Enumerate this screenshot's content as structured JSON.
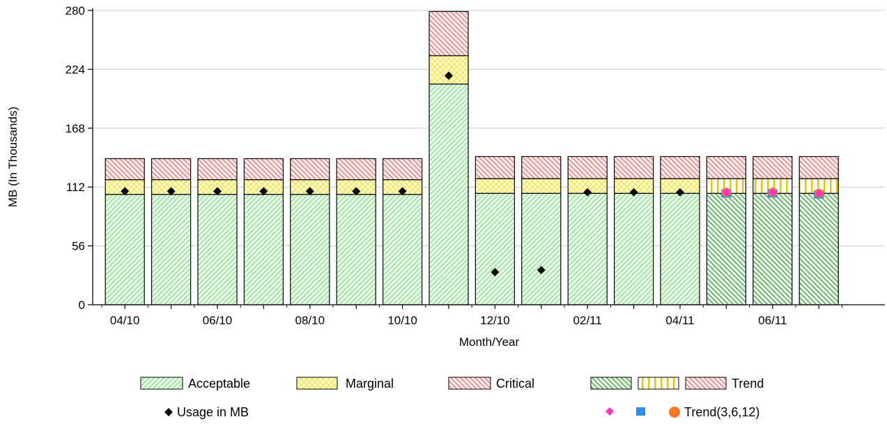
{
  "chart_data": {
    "type": "bar",
    "stacked": true,
    "xlabel": "Month/Year",
    "ylabel": "MB (In Thousands)",
    "ylim": [
      0,
      280
    ],
    "yticks": [
      "0",
      "56",
      "112",
      "168",
      "224",
      "280"
    ],
    "ytick_values": [
      0,
      56,
      112,
      168,
      224,
      280
    ],
    "grid": "horizontal",
    "categories": [
      "04/10",
      "05/10",
      "06/10",
      "07/10",
      "08/10",
      "09/10",
      "10/10",
      "11/10",
      "12/10",
      "01/11",
      "02/11",
      "03/11",
      "04/11",
      "05/11",
      "06/11",
      "07/11"
    ],
    "xtick_labels": [
      "04/10",
      "",
      "06/10",
      "",
      "08/10",
      "",
      "10/10",
      "",
      "12/10",
      "",
      "02/11",
      "",
      "04/11",
      "",
      "06/11",
      ""
    ],
    "is_trend": [
      false,
      false,
      false,
      false,
      false,
      false,
      false,
      false,
      false,
      false,
      false,
      false,
      false,
      true,
      true,
      true
    ],
    "series": [
      {
        "name": "Acceptable",
        "values": [
          105,
          105,
          105,
          105,
          105,
          105,
          105,
          210,
          106,
          106,
          106,
          106,
          106,
          106,
          106,
          106
        ]
      },
      {
        "name": "Marginal",
        "values": [
          14,
          14,
          14,
          14,
          14,
          14,
          14,
          27,
          14,
          14,
          14,
          14,
          14,
          14,
          14,
          14
        ]
      },
      {
        "name": "Critical",
        "values": [
          20,
          20,
          20,
          20,
          20,
          20,
          20,
          42,
          21,
          21,
          21,
          21,
          21,
          21,
          21,
          21
        ]
      }
    ],
    "usage": [
      108,
      108,
      108,
      108,
      108,
      108,
      108,
      218,
      31,
      33,
      107,
      107,
      107,
      null,
      null,
      null
    ],
    "trend_points": [
      {
        "category": "05/11",
        "t3": 107,
        "t6": 106,
        "t12": 107
      },
      {
        "category": "06/11",
        "t3": 107,
        "t6": 106,
        "t12": 107
      },
      {
        "category": "07/11",
        "t3": 106,
        "t6": 105,
        "t12": 106
      }
    ],
    "colors": {
      "acceptable": "#7ee07e",
      "acceptable_bg": "#ecfbec",
      "marginal": "#f2e23a",
      "marginal_bg": "#fdfbd6",
      "critical": "#ee6b6b",
      "critical_bg": "#fdeeee",
      "trend_acceptable": "#4a9a4a",
      "trend_acceptable_bg": "#e3f3e3",
      "trend_marginal": "#e8c400",
      "usage": "#000000",
      "trend3": "#ff33cc",
      "trend6": "#2b8fe8",
      "trend12": "#ff7722"
    },
    "legend": {
      "placement": "bottom",
      "row1": [
        "Acceptable",
        "Marginal",
        "Critical",
        "Trend"
      ],
      "row2": [
        "Usage in MB",
        "Trend(3,6,12)"
      ]
    }
  }
}
